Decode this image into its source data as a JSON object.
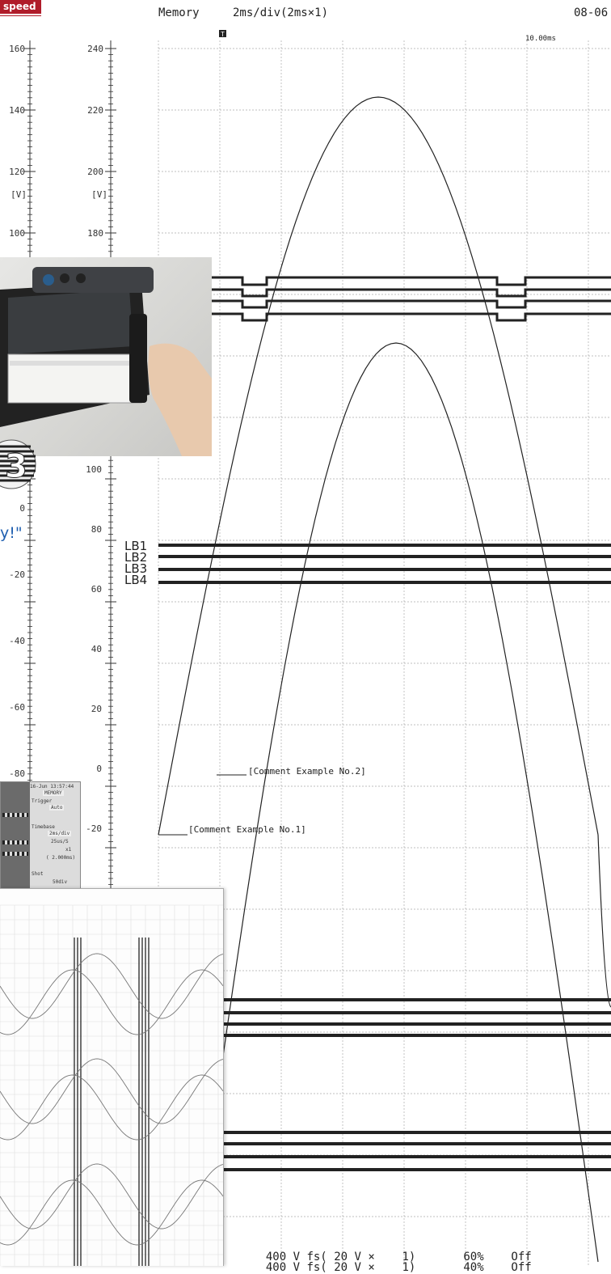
{
  "badge": "speed",
  "header": {
    "mode": "Memory",
    "timebase": "2ms/div(2ms×1)",
    "date": "08-06"
  },
  "trigger_marker": "T",
  "time_label": "10.00ms",
  "scale_left": {
    "unit": "[V]",
    "ticks_a": [
      "160",
      "140",
      "120",
      "100"
    ],
    "ticks_b": [
      "0",
      "-20",
      "-40",
      "-60",
      "-80"
    ]
  },
  "scale_right": {
    "unit": "[V]",
    "ticks_a": [
      "240",
      "220",
      "200",
      "180"
    ],
    "ticks_b": [
      "100",
      "80",
      "60",
      "40",
      "20",
      "0",
      "-20"
    ]
  },
  "logic_labels": [
    "LB1",
    "LB2",
    "LB3",
    "LB4"
  ],
  "comments": [
    "[Comment Example No.2]",
    "[Comment Example No.1]"
  ],
  "quote_fragment": "y!\"",
  "bottom_rows": [
    {
      "range": "400 V",
      "fs": "fs(",
      "div": "20 V",
      "x": "×",
      "mult": "1)",
      "pos": "60%",
      "state": "Off"
    },
    {
      "range": "400 V",
      "fs": "fs(",
      "div": "20 V",
      "x": "×",
      "mult": "1)",
      "pos": "40%",
      "state": "Off"
    }
  ],
  "screen_panel": {
    "time": "16-Jun 13:57:44",
    "mode": "MEMORY",
    "trigger_label": "Trigger",
    "trigger_value": "Auto",
    "timebase_label": "Timebase",
    "timebase_value": "2ms/div",
    "shot_label": "Shot",
    "extra": [
      "25us/S",
      "x1",
      "( 2.000ms)",
      "50div"
    ]
  }
}
